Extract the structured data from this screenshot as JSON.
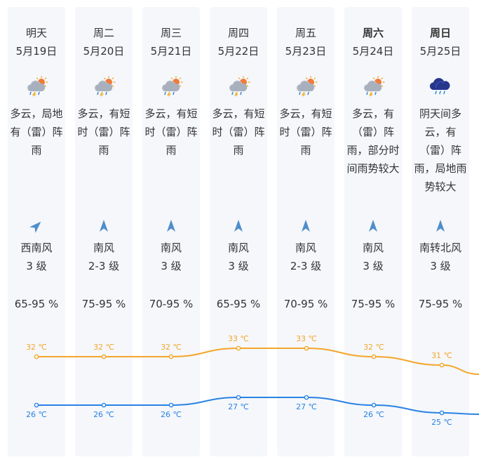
{
  "forecast": [
    {
      "day": "明天",
      "date": "5月19日",
      "bold": false,
      "icon": "cloudy-thunder-shower-icon",
      "icon_type": "cloudy",
      "desc": [
        "多云，局地",
        "有（雷）阵",
        "雨"
      ],
      "wind_dir": "southwest",
      "wind": "西南风",
      "wind_level": "3 级",
      "humidity": "65-95 %",
      "high_label": "32 ℃",
      "low_label": "26 ℃"
    },
    {
      "day": "周二",
      "date": "5月20日",
      "bold": false,
      "icon": "cloudy-thunder-shower-icon",
      "icon_type": "cloudy",
      "desc": [
        "多云，有短",
        "时（雷）阵",
        "雨"
      ],
      "wind_dir": "south",
      "wind": "南风",
      "wind_level": "2-3 级",
      "humidity": "75-95 %",
      "high_label": "32 ℃",
      "low_label": "26 ℃"
    },
    {
      "day": "周三",
      "date": "5月21日",
      "bold": false,
      "icon": "cloudy-thunder-shower-icon",
      "icon_type": "cloudy",
      "desc": [
        "多云，有短",
        "时（雷）阵",
        "雨"
      ],
      "wind_dir": "south",
      "wind": "南风",
      "wind_level": "3 级",
      "humidity": "70-95 %",
      "high_label": "32 ℃",
      "low_label": "26 ℃"
    },
    {
      "day": "周四",
      "date": "5月22日",
      "bold": false,
      "icon": "cloudy-thunder-shower-icon",
      "icon_type": "cloudy",
      "desc": [
        "多云，有短",
        "时（雷）阵",
        "雨"
      ],
      "wind_dir": "south",
      "wind": "南风",
      "wind_level": "3 级",
      "humidity": "65-95 %",
      "high_label": "33 ℃",
      "low_label": "27 ℃"
    },
    {
      "day": "周五",
      "date": "5月23日",
      "bold": false,
      "icon": "cloudy-thunder-shower-icon",
      "icon_type": "cloudy",
      "desc": [
        "多云，有短",
        "时（雷）阵",
        "雨"
      ],
      "wind_dir": "south",
      "wind": "南风",
      "wind_level": "2-3 级",
      "humidity": "70-95 %",
      "high_label": "33 ℃",
      "low_label": "27 ℃"
    },
    {
      "day": "周六",
      "date": "5月24日",
      "bold": true,
      "icon": "cloudy-thunder-shower-icon",
      "icon_type": "cloudy",
      "desc": [
        "多云，有",
        "（雷）阵",
        "雨，部分时",
        "间雨势较大"
      ],
      "wind_dir": "south",
      "wind": "南风",
      "wind_level": "3 级",
      "humidity": "75-95 %",
      "high_label": "32 ℃",
      "low_label": "26 ℃"
    },
    {
      "day": "周日",
      "date": "5月25日",
      "bold": true,
      "icon": "overcast-thunder-shower-icon",
      "icon_type": "overcast",
      "desc": [
        "阴天间多",
        "云，有",
        "（雷）阵",
        "雨，局地雨",
        "势较大"
      ],
      "wind_dir": "south",
      "wind": "南转北风",
      "wind_level": "3 级",
      "humidity": "75-95 %",
      "high_label": "31 ℃",
      "low_label": "25 ℃"
    }
  ],
  "chart_data": {
    "type": "line",
    "categories": [
      "5月19日",
      "5月20日",
      "5月21日",
      "5月22日",
      "5月23日",
      "5月24日",
      "5月25日"
    ],
    "series": [
      {
        "values": [
          32,
          32,
          32,
          33,
          33,
          32,
          31
        ],
        "color": "#f4a62a"
      },
      {
        "values": [
          26,
          26,
          26,
          27,
          27,
          26,
          25
        ],
        "color": "#2a82e4"
      }
    ]
  }
}
